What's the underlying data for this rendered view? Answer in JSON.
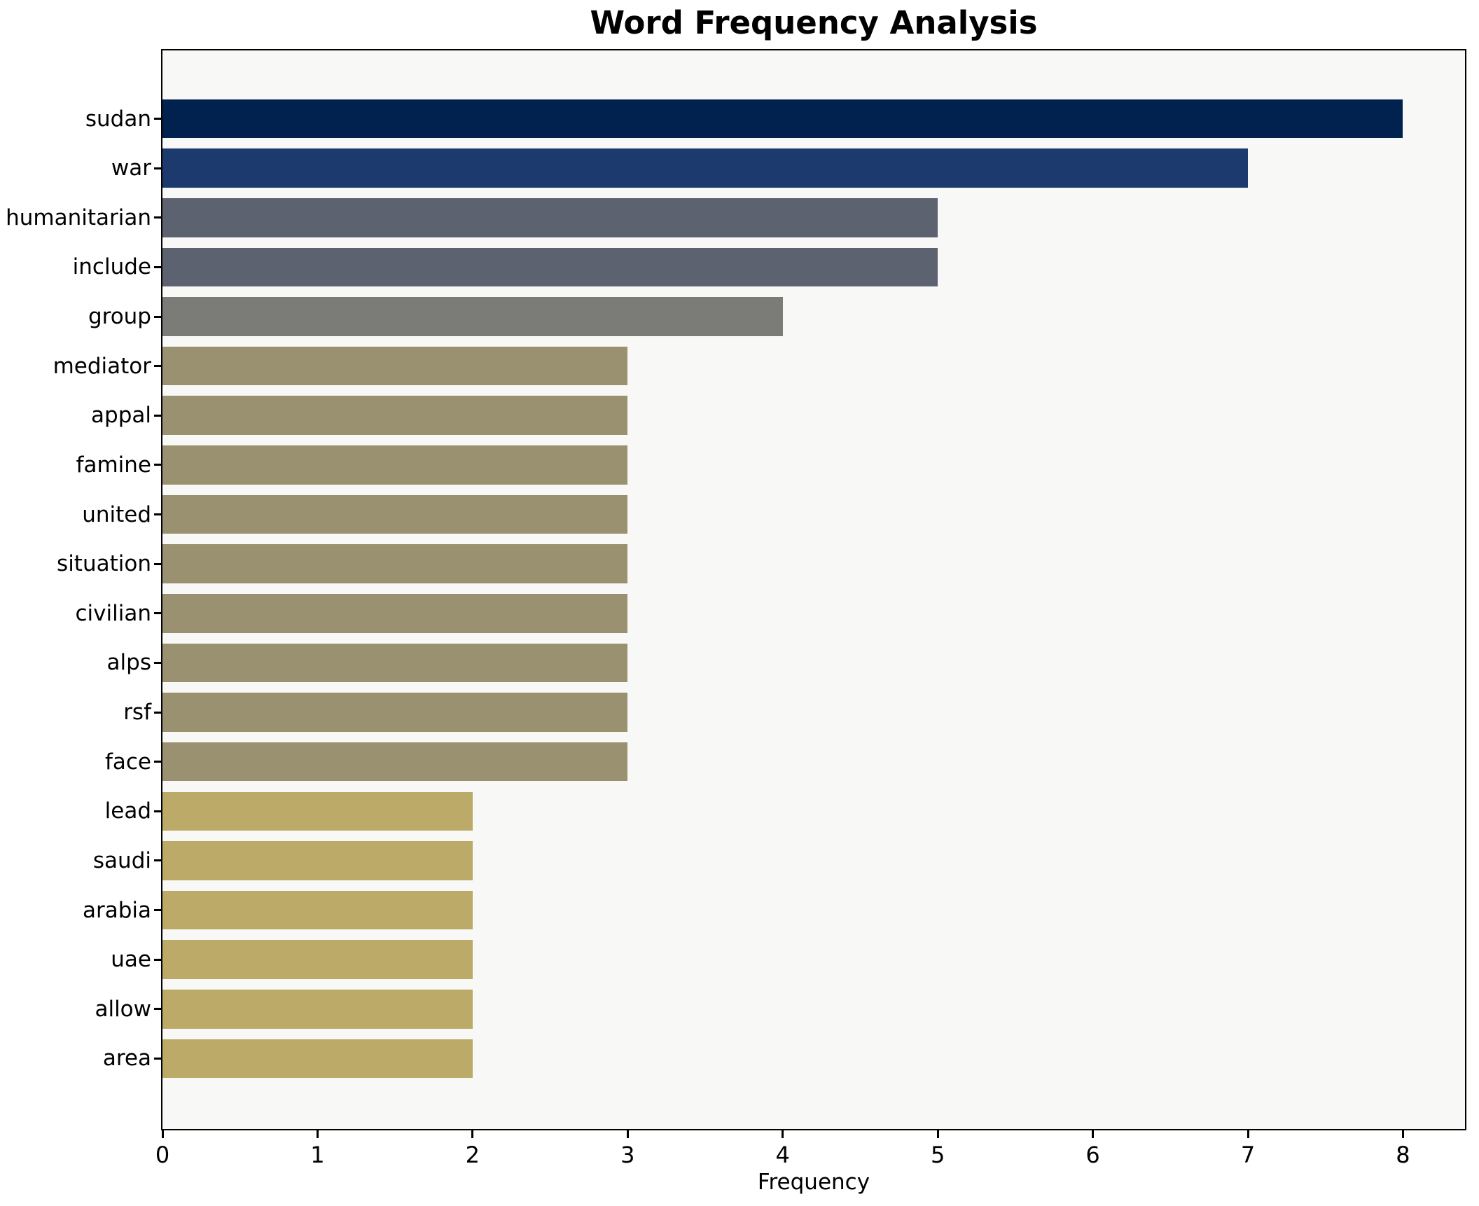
{
  "chart_data": {
    "type": "bar",
    "orientation": "horizontal",
    "title": "Word Frequency Analysis",
    "xlabel": "Frequency",
    "ylabel": "",
    "xlim": [
      0,
      8.4
    ],
    "x_ticks": [
      "0",
      "1",
      "2",
      "3",
      "4",
      "5",
      "6",
      "7",
      "8"
    ],
    "x_tick_values": [
      0,
      1,
      2,
      3,
      4,
      5,
      6,
      7,
      8
    ],
    "grid": false,
    "legend": "none",
    "plot_background": "#f8f8f7",
    "figure_background": "#ffffff",
    "categories": [
      "sudan",
      "war",
      "humanitarian",
      "include",
      "group",
      "mediator",
      "appal",
      "famine",
      "united",
      "situation",
      "civilian",
      "alps",
      "rsf",
      "face",
      "lead",
      "saudi",
      "arabia",
      "uae",
      "allow",
      "area"
    ],
    "values": [
      8,
      7,
      5,
      5,
      4,
      3,
      3,
      3,
      3,
      3,
      3,
      3,
      3,
      3,
      2,
      2,
      2,
      2,
      2,
      2
    ],
    "bar_colors": [
      "#01224e",
      "#1c3a6e",
      "#5d6270",
      "#5d6270",
      "#7b7b77",
      "#999170",
      "#999170",
      "#999170",
      "#999170",
      "#999170",
      "#999170",
      "#999170",
      "#999170",
      "#999170",
      "#bcab68",
      "#bcab68",
      "#bcab68",
      "#bcab68",
      "#bcab68",
      "#bcab68"
    ]
  }
}
